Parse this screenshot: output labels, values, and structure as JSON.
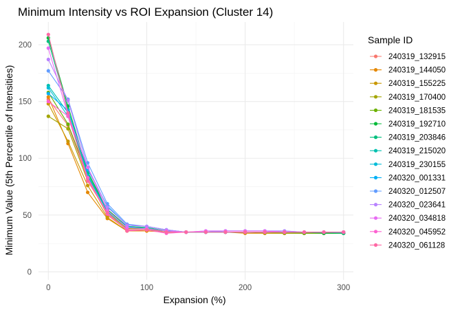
{
  "chart_data": {
    "type": "line",
    "title": "Minimum Intensity vs ROI Expansion (Cluster 14)",
    "xlabel": "Expansion (%)",
    "ylabel": "Minimum Value (5th Percentile of Intensities)",
    "xlim": [
      -10,
      310
    ],
    "ylim": [
      -7,
      220
    ],
    "xticks": [
      0,
      100,
      200,
      300
    ],
    "yticks": [
      0,
      50,
      100,
      150,
      200
    ],
    "grid": true,
    "legend_title": "Sample ID",
    "legend_position": "right",
    "x": [
      0,
      20,
      40,
      60,
      80,
      100,
      120,
      140,
      160,
      180,
      200,
      220,
      240,
      260,
      280,
      300
    ],
    "series": [
      {
        "name": "240319_132915",
        "color": "#F8766D",
        "values": [
          152,
          129,
          82,
          50,
          37,
          37,
          35,
          35,
          35,
          35,
          35,
          35,
          34,
          34,
          34,
          34
        ]
      },
      {
        "name": "240319_144050",
        "color": "#E58700",
        "values": [
          154,
          113,
          70,
          47,
          36,
          36,
          35,
          35,
          35,
          35,
          34,
          34,
          34,
          34,
          34,
          34
        ]
      },
      {
        "name": "240319_155225",
        "color": "#C99800",
        "values": [
          148,
          115,
          76,
          48,
          36,
          37,
          35,
          35,
          35,
          35,
          35,
          34,
          34,
          34,
          34,
          34
        ]
      },
      {
        "name": "240319_170400",
        "color": "#A3A500",
        "values": [
          137,
          126,
          80,
          52,
          38,
          38,
          35,
          35,
          35,
          35,
          35,
          35,
          34,
          34,
          34,
          34
        ]
      },
      {
        "name": "240319_181535",
        "color": "#6BB100",
        "values": [
          158,
          130,
          85,
          54,
          39,
          38,
          36,
          35,
          35,
          35,
          35,
          35,
          35,
          34,
          34,
          34
        ]
      },
      {
        "name": "240319_192710",
        "color": "#00BA38",
        "values": [
          206,
          146,
          88,
          55,
          40,
          39,
          36,
          35,
          35,
          35,
          35,
          35,
          35,
          35,
          34,
          34
        ]
      },
      {
        "name": "240319_203846",
        "color": "#00BF7D",
        "values": [
          203,
          143,
          87,
          54,
          39,
          39,
          36,
          35,
          35,
          35,
          35,
          35,
          35,
          35,
          35,
          34
        ]
      },
      {
        "name": "240319_215020",
        "color": "#00C0AF",
        "values": [
          164,
          140,
          85,
          53,
          39,
          38,
          36,
          35,
          35,
          35,
          35,
          35,
          35,
          35,
          35,
          35
        ]
      },
      {
        "name": "240319_230155",
        "color": "#00BCD8",
        "values": [
          162,
          137,
          84,
          53,
          40,
          38,
          36,
          35,
          35,
          35,
          35,
          35,
          35,
          35,
          35,
          35
        ]
      },
      {
        "name": "240320_001331",
        "color": "#00B0F6",
        "values": [
          157,
          142,
          90,
          58,
          41,
          40,
          37,
          35,
          35,
          36,
          36,
          36,
          35,
          35,
          35,
          35
        ]
      },
      {
        "name": "240320_012507",
        "color": "#619CFF",
        "values": [
          177,
          152,
          96,
          60,
          42,
          40,
          37,
          35,
          35,
          36,
          36,
          36,
          36,
          35,
          35,
          35
        ]
      },
      {
        "name": "240320_023641",
        "color": "#B983FF",
        "values": [
          187,
          151,
          92,
          57,
          41,
          40,
          37,
          35,
          36,
          36,
          36,
          36,
          36,
          35,
          35,
          35
        ]
      },
      {
        "name": "240320_034818",
        "color": "#E76BF3",
        "values": [
          197,
          138,
          92,
          54,
          39,
          38,
          36,
          35,
          36,
          36,
          36,
          36,
          35,
          35,
          35,
          35
        ]
      },
      {
        "name": "240320_045952",
        "color": "#FD61D1",
        "values": [
          150,
          137,
          83,
          51,
          37,
          37,
          34,
          35,
          35,
          35,
          35,
          35,
          35,
          35,
          35,
          35
        ]
      },
      {
        "name": "240320_061128",
        "color": "#FF67A4",
        "values": [
          209,
          140,
          80,
          52,
          36,
          37,
          35,
          35,
          35,
          35,
          35,
          35,
          35,
          35,
          35,
          35
        ]
      }
    ]
  }
}
